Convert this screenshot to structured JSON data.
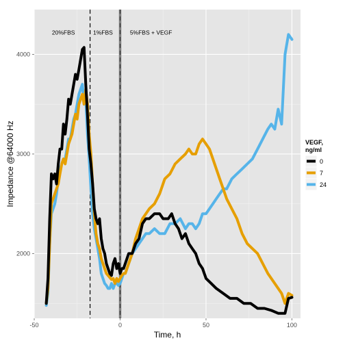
{
  "chart_data": {
    "type": "line",
    "title": "",
    "xlabel": "Time, h",
    "ylabel": "Impedance @64000 Hz",
    "xlim": [
      -50,
      105
    ],
    "ylim": [
      1350,
      4450
    ],
    "x_ticks": [
      -50,
      0,
      50,
      100
    ],
    "y_ticks": [
      2000,
      3000,
      4000
    ],
    "grid": true,
    "legend": {
      "title": "VEGF, ng/ml",
      "position": "right",
      "entries": [
        "0",
        "7",
        "24"
      ]
    },
    "colors": {
      "0": "#000000",
      "7": "#E69F00",
      "24": "#56B4E9",
      "panel": "#E5E5E5"
    },
    "vlines": [
      {
        "x": -17.5,
        "style": "dashed",
        "color": "#000000"
      },
      {
        "x": 0,
        "style": "solid",
        "color": "#808080"
      },
      {
        "x": 0,
        "style": "dashed",
        "color": "#333333"
      }
    ],
    "annotations": [
      {
        "text": "20%FBS",
        "x": -33,
        "y": 4200
      },
      {
        "text": "1%FBS",
        "x": -10,
        "y": 4200
      },
      {
        "text": "5%FBS + VEGF",
        "x": 18,
        "y": 4200
      }
    ],
    "series": [
      {
        "name": "0",
        "x": [
          -43,
          -42,
          -41,
          -40,
          -39,
          -38,
          -37,
          -36,
          -35,
          -34,
          -33,
          -32,
          -31,
          -30,
          -29,
          -28,
          -27,
          -26,
          -25,
          -24,
          -23,
          -22,
          -21,
          -20,
          -19,
          -18,
          -17,
          -16,
          -15,
          -14,
          -13,
          -12,
          -11,
          -10,
          -9,
          -8,
          -7,
          -6,
          -5,
          -4,
          -3,
          -2,
          -1,
          0,
          1,
          2,
          3,
          5,
          7,
          9,
          11,
          13,
          15,
          17,
          20,
          23,
          25,
          28,
          30,
          32,
          34,
          36,
          38,
          40,
          42,
          44,
          46,
          48,
          50,
          53,
          56,
          60,
          64,
          68,
          72,
          76,
          80,
          84,
          88,
          92,
          96,
          98,
          100
        ],
        "y": [
          1500,
          1750,
          2350,
          2800,
          2750,
          2800,
          2700,
          2900,
          3050,
          3050,
          3300,
          3200,
          3350,
          3550,
          3500,
          3600,
          3700,
          3800,
          3750,
          3850,
          3950,
          4050,
          4070,
          3700,
          3400,
          3050,
          2900,
          2700,
          2450,
          2350,
          2300,
          2350,
          2150,
          2050,
          2000,
          1900,
          1850,
          1800,
          1780,
          1900,
          1950,
          1850,
          1900,
          1800,
          1850,
          1850,
          1900,
          2000,
          2000,
          2100,
          2150,
          2300,
          2350,
          2350,
          2400,
          2400,
          2350,
          2350,
          2400,
          2300,
          2250,
          2150,
          2200,
          2100,
          2050,
          2000,
          1900,
          1850,
          1750,
          1700,
          1650,
          1600,
          1550,
          1550,
          1500,
          1500,
          1450,
          1450,
          1430,
          1400,
          1400,
          1550,
          1560
        ]
      },
      {
        "name": "7",
        "x": [
          -43,
          -42,
          -41,
          -40,
          -39,
          -38,
          -37,
          -36,
          -35,
          -34,
          -33,
          -32,
          -31,
          -30,
          -29,
          -28,
          -27,
          -26,
          -25,
          -24,
          -23,
          -22,
          -21,
          -20,
          -19,
          -18,
          -17,
          -16,
          -15,
          -14,
          -13,
          -12,
          -11,
          -10,
          -9,
          -8,
          -7,
          -6,
          -5,
          -4,
          -3,
          -2,
          -1,
          0,
          1,
          2,
          3,
          5,
          7,
          9,
          11,
          13,
          15,
          17,
          20,
          23,
          26,
          29,
          32,
          35,
          38,
          40,
          42,
          44,
          46,
          48,
          50,
          52,
          54,
          56,
          58,
          60,
          62,
          65,
          68,
          71,
          74,
          77,
          80,
          83,
          86,
          90,
          94,
          96,
          98,
          100
        ],
        "y": [
          1500,
          1650,
          2100,
          2500,
          2550,
          2600,
          2650,
          2700,
          2800,
          2900,
          2950,
          2900,
          3000,
          3100,
          3150,
          3200,
          3300,
          3400,
          3350,
          3500,
          3550,
          3600,
          3500,
          3650,
          3500,
          3200,
          3000,
          2700,
          2400,
          2200,
          2100,
          2050,
          1950,
          1900,
          1850,
          1800,
          1780,
          1760,
          1740,
          1750,
          1700,
          1750,
          1720,
          1750,
          1780,
          1800,
          1800,
          1900,
          2000,
          2150,
          2250,
          2350,
          2400,
          2450,
          2500,
          2600,
          2750,
          2800,
          2900,
          2950,
          3000,
          3050,
          3000,
          3000,
          3100,
          3150,
          3100,
          3050,
          2950,
          2850,
          2750,
          2650,
          2550,
          2450,
          2350,
          2200,
          2100,
          2050,
          2000,
          1900,
          1800,
          1700,
          1600,
          1500,
          1600,
          1580
        ]
      },
      {
        "name": "24",
        "x": [
          -43,
          -42,
          -41,
          -40,
          -39,
          -38,
          -37,
          -36,
          -35,
          -34,
          -33,
          -32,
          -31,
          -30,
          -29,
          -28,
          -27,
          -26,
          -25,
          -24,
          -23,
          -22,
          -21,
          -20,
          -19,
          -18,
          -17,
          -16,
          -15,
          -14,
          -13,
          -12,
          -11,
          -10,
          -9,
          -8,
          -7,
          -6,
          -5,
          -4,
          -3,
          -2,
          -1,
          0,
          1,
          2,
          3,
          5,
          7,
          9,
          11,
          13,
          15,
          17,
          20,
          23,
          26,
          29,
          32,
          35,
          38,
          40,
          42,
          44,
          46,
          48,
          50,
          52,
          54,
          56,
          58,
          60,
          62,
          65,
          68,
          71,
          74,
          77,
          80,
          83,
          86,
          88,
          90,
          92,
          94,
          96,
          98,
          100
        ],
        "y": [
          1480,
          1600,
          2100,
          2400,
          2450,
          2500,
          2600,
          2750,
          2850,
          2900,
          2950,
          2950,
          3050,
          3150,
          3150,
          3250,
          3350,
          3400,
          3500,
          3600,
          3650,
          3700,
          3500,
          3550,
          3200,
          2950,
          2650,
          2400,
          2250,
          2150,
          2050,
          1950,
          1800,
          1750,
          1700,
          1680,
          1650,
          1650,
          1700,
          1650,
          1700,
          1700,
          1680,
          1700,
          1750,
          1800,
          1800,
          1900,
          2000,
          2050,
          2100,
          2150,
          2200,
          2200,
          2250,
          2200,
          2200,
          2300,
          2300,
          2350,
          2250,
          2300,
          2300,
          2250,
          2300,
          2400,
          2400,
          2450,
          2500,
          2550,
          2600,
          2650,
          2650,
          2750,
          2800,
          2850,
          2900,
          2950,
          3050,
          3150,
          3250,
          3300,
          3250,
          3450,
          3300,
          4000,
          4200,
          4150
        ]
      }
    ]
  }
}
